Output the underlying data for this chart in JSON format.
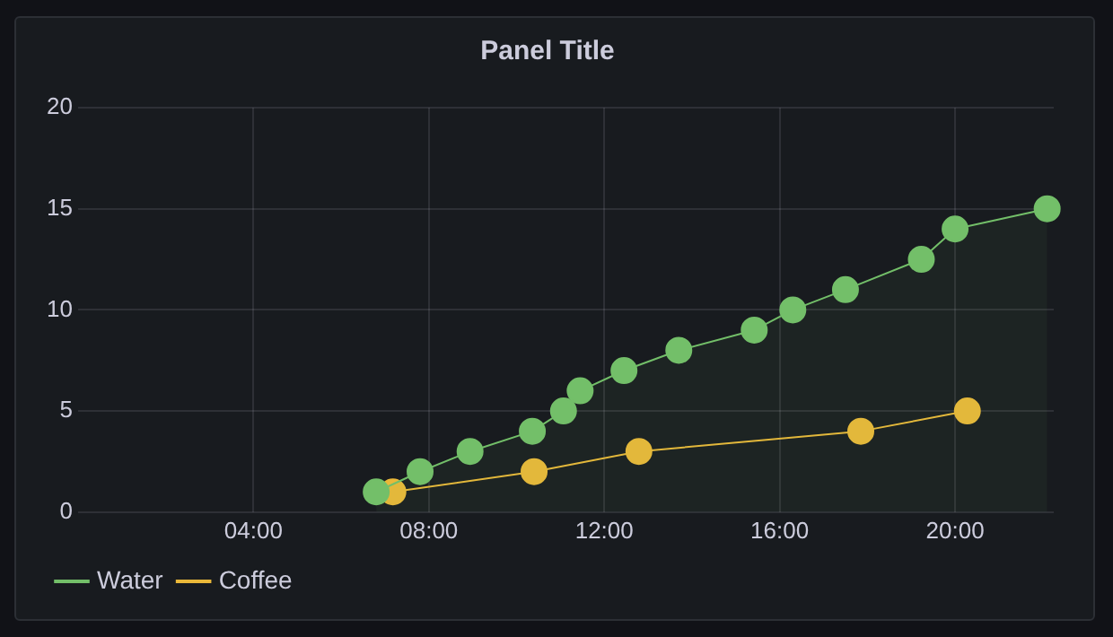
{
  "chart_data": {
    "type": "line",
    "title": "Panel Title",
    "xlim": [
      0,
      22.25
    ],
    "xticks": [
      {
        "value": 4,
        "label": "04:00"
      },
      {
        "value": 8,
        "label": "08:00"
      },
      {
        "value": 12,
        "label": "12:00"
      },
      {
        "value": 16,
        "label": "16:00"
      },
      {
        "value": 20,
        "label": "20:00"
      }
    ],
    "ylim": [
      0,
      20
    ],
    "yticks": [
      0,
      5,
      10,
      15,
      20
    ],
    "series": [
      {
        "name": "Water",
        "type": "area",
        "color": "#73bf69",
        "x": [
          6.8,
          7.8,
          8.94,
          10.36,
          11.07,
          11.45,
          12.45,
          13.7,
          15.42,
          16.3,
          17.5,
          19.23,
          20.0,
          22.1
        ],
        "values": [
          1,
          2,
          3,
          4,
          5,
          6,
          7,
          8,
          9,
          10,
          11,
          12.5,
          14,
          15
        ]
      },
      {
        "name": "Coffee",
        "type": "line",
        "color": "#eab839",
        "x": [
          7.18,
          10.4,
          12.79,
          17.85,
          20.28
        ],
        "values": [
          1,
          2,
          3,
          4,
          5
        ]
      }
    ],
    "grid": true,
    "legend": "bottom left",
    "marker": "circle",
    "line_style": "solid"
  }
}
